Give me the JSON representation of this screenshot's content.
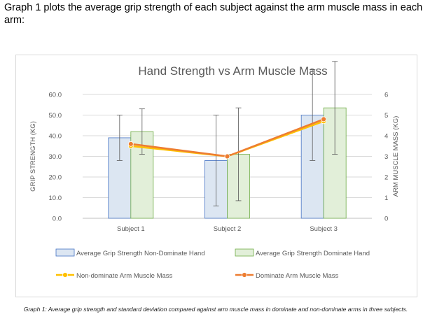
{
  "intro_text": "Graph 1 plots the average grip strength of each subject against the arm muscle mass in each arm:",
  "caption": "Graph 1: Average grip strength and standard deviation compared against arm muscle mass in dominate and non-dominate arms in three subjects.",
  "chart_data": {
    "type": "bar",
    "title": "Hand Strength vs Arm Muscle Mass",
    "ylabel": "GRIP STRENGTH (KG)",
    "y2label": "ARM MUSCLE MASS (KG)",
    "ylim": [
      0,
      60
    ],
    "y2lim": [
      0,
      6
    ],
    "yticks": [
      "0.0",
      "10.0",
      "20.0",
      "30.0",
      "40.0",
      "50.0",
      "60.0"
    ],
    "y2ticks": [
      "0",
      "1",
      "2",
      "3",
      "4",
      "5",
      "6"
    ],
    "grid": true,
    "legend_position": "bottom",
    "categories": [
      "Subject 1",
      "Subject 2",
      "Subject 3"
    ],
    "bar_series": [
      {
        "name": "Average Grip Strength Non-Dominate Hand",
        "values": [
          39,
          28,
          50
        ],
        "error": [
          11,
          22,
          22
        ],
        "color": "#dce6f2",
        "border": "#4472c4"
      },
      {
        "name": "Average Grip Strength Dominate Hand",
        "values": [
          42,
          31,
          53.5
        ],
        "error": [
          11,
          22.5,
          22.5
        ],
        "color": "#e2efd9",
        "border": "#70ad47"
      }
    ],
    "line_series": [
      {
        "name": "Non-dominate Arm Muscle Mass",
        "values": [
          3.5,
          3.0,
          4.7
        ],
        "color": "#ffc000"
      },
      {
        "name": "Dominate Arm Muscle Mass",
        "values": [
          3.6,
          3.0,
          4.8
        ],
        "color": "#ed7d31"
      }
    ]
  }
}
